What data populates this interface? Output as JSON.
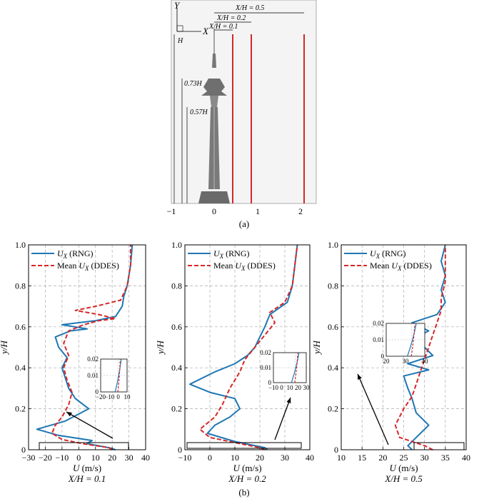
{
  "panel_a": {
    "caption": "(a)",
    "axis_y": "Y",
    "axis_x": "X",
    "height_label": "H",
    "ratio_labels": [
      "X/H = 0.5",
      "X/H = 0.2",
      "X/H = 0.1"
    ],
    "height_markers": [
      "0.73H",
      "0.57H"
    ],
    "x_ticks": [
      "−1",
      "0",
      "1",
      "2"
    ],
    "line_color": "#d62728"
  },
  "panel_b_caption": "(b)",
  "chart_data": [
    {
      "type": "line",
      "panel_label": "X/H = 0.1",
      "xlabel": "U (m/s)",
      "ylabel": "y/H",
      "xlim": [
        -30,
        40
      ],
      "ylim": [
        0,
        1
      ],
      "x_ticks": [
        -30,
        -20,
        -10,
        0,
        10,
        20,
        30,
        40
      ],
      "x_tick_labels": [
        "−30",
        "−20",
        "−10",
        "0",
        "10",
        "20",
        "30",
        "40"
      ],
      "y_ticks": [
        0,
        0.2,
        0.4,
        0.6,
        0.8,
        1.0
      ],
      "y_tick_labels": [
        "0",
        "0.2",
        "0.4",
        "0.6",
        "0.8",
        "1.0"
      ],
      "grid": true,
      "legend_position": "top-left",
      "series": [
        {
          "name": "Ux (RNG)",
          "label_main": "U",
          "label_sub": "X",
          "label_rest": " (RNG)",
          "color": "#1f77b4",
          "dash": "solid",
          "points": [
            [
              22,
              0.0
            ],
            [
              18,
              0.01
            ],
            [
              5,
              0.03
            ],
            [
              8,
              0.045
            ],
            [
              -12,
              0.07
            ],
            [
              -25,
              0.1
            ],
            [
              -8,
              0.14
            ],
            [
              6,
              0.2
            ],
            [
              -2,
              0.25
            ],
            [
              -6,
              0.3
            ],
            [
              -8,
              0.35
            ],
            [
              -10,
              0.4
            ],
            [
              -7,
              0.45
            ],
            [
              -12,
              0.5
            ],
            [
              -14,
              0.55
            ],
            [
              -5,
              0.58
            ],
            [
              5,
              0.59
            ],
            [
              -10,
              0.61
            ],
            [
              10,
              0.63
            ],
            [
              22,
              0.65
            ],
            [
              26,
              0.7
            ],
            [
              27,
              0.75
            ],
            [
              29,
              0.8
            ],
            [
              31,
              0.9
            ],
            [
              32,
              1.0
            ]
          ]
        },
        {
          "name": "Mean Ux (DDES)",
          "label_main": "Mean U",
          "label_sub": "X",
          "label_rest": " (DDES)",
          "color": "#d62728",
          "dash": "dashed",
          "points": [
            [
              20,
              0.0
            ],
            [
              18,
              0.01
            ],
            [
              2,
              0.03
            ],
            [
              -10,
              0.05
            ],
            [
              -16,
              0.08
            ],
            [
              -14,
              0.12
            ],
            [
              -10,
              0.16
            ],
            [
              -6,
              0.22
            ],
            [
              -4,
              0.28
            ],
            [
              -7,
              0.34
            ],
            [
              -9,
              0.4
            ],
            [
              -6,
              0.46
            ],
            [
              -9,
              0.52
            ],
            [
              -6,
              0.58
            ],
            [
              3,
              0.61
            ],
            [
              12,
              0.63
            ],
            [
              22,
              0.64
            ],
            [
              12,
              0.66
            ],
            [
              -2,
              0.68
            ],
            [
              10,
              0.7
            ],
            [
              25,
              0.73
            ],
            [
              29,
              0.8
            ],
            [
              31,
              0.9
            ],
            [
              31,
              1.0
            ]
          ]
        }
      ],
      "inset": {
        "xlim": [
          -20,
          10
        ],
        "ylim": [
          0,
          0.02
        ],
        "x_tick_labels": [
          "−20",
          "−10",
          "0",
          "10"
        ],
        "y_tick_labels": [
          "0",
          "0.01",
          "0.02"
        ]
      }
    },
    {
      "type": "line",
      "panel_label": "X/H = 0.2",
      "xlabel": "U (m/s)",
      "ylabel": "y/H",
      "xlim": [
        -10,
        40
      ],
      "ylim": [
        0,
        1
      ],
      "x_ticks": [
        -10,
        0,
        10,
        20,
        30,
        40
      ],
      "x_tick_labels": [
        "−10",
        "0",
        "10",
        "20",
        "30",
        "40"
      ],
      "y_ticks": [
        0,
        0.2,
        0.4,
        0.6,
        0.8,
        1.0
      ],
      "y_tick_labels": [
        "0",
        "0.2",
        "0.4",
        "0.6",
        "0.8",
        "1.0"
      ],
      "grid": true,
      "legend_position": "top-left",
      "series": [
        {
          "name": "Ux (RNG)",
          "label_main": "U",
          "label_sub": "X",
          "label_rest": " (RNG)",
          "color": "#1f77b4",
          "dash": "solid",
          "points": [
            [
              23,
              0.0
            ],
            [
              22,
              0.01
            ],
            [
              10,
              0.04
            ],
            [
              -1,
              0.08
            ],
            [
              2,
              0.12
            ],
            [
              8,
              0.16
            ],
            [
              12,
              0.2
            ],
            [
              10,
              0.25
            ],
            [
              0,
              0.28
            ],
            [
              -8,
              0.32
            ],
            [
              2,
              0.38
            ],
            [
              10,
              0.42
            ],
            [
              15,
              0.46
            ],
            [
              18,
              0.5
            ],
            [
              20,
              0.55
            ],
            [
              22,
              0.6
            ],
            [
              24,
              0.66
            ],
            [
              31,
              0.72
            ],
            [
              33,
              0.8
            ],
            [
              34,
              0.9
            ],
            [
              35,
              1.0
            ]
          ]
        },
        {
          "name": "Mean Ux (DDES)",
          "label_main": "Mean U",
          "label_sub": "X",
          "label_rest": " (DDES)",
          "color": "#d62728",
          "dash": "dashed",
          "points": [
            [
              22,
              0.0
            ],
            [
              20,
              0.01
            ],
            [
              12,
              0.03
            ],
            [
              0,
              0.06
            ],
            [
              -4,
              0.1
            ],
            [
              2,
              0.16
            ],
            [
              5,
              0.22
            ],
            [
              8,
              0.3
            ],
            [
              12,
              0.38
            ],
            [
              14,
              0.44
            ],
            [
              18,
              0.5
            ],
            [
              22,
              0.56
            ],
            [
              26,
              0.62
            ],
            [
              24,
              0.67
            ],
            [
              30,
              0.72
            ],
            [
              33,
              0.8
            ],
            [
              34,
              0.9
            ],
            [
              35,
              1.0
            ]
          ]
        }
      ],
      "inset": {
        "xlim": [
          -10,
          30
        ],
        "ylim": [
          0,
          0.02
        ],
        "x_tick_labels": [
          "−10",
          "0",
          "10",
          "20",
          "30"
        ],
        "y_tick_labels": [
          "0",
          "0.01",
          "0.02"
        ]
      }
    },
    {
      "type": "line",
      "panel_label": "X/H = 0.5",
      "xlabel": "U (m/s)",
      "ylabel": "y/H",
      "xlim": [
        10,
        40
      ],
      "ylim": [
        0,
        1
      ],
      "x_ticks": [
        10,
        15,
        20,
        25,
        30,
        35,
        40
      ],
      "x_tick_labels": [
        "10",
        "15",
        "20",
        "25",
        "30",
        "35",
        "40"
      ],
      "y_ticks": [
        0,
        0.2,
        0.4,
        0.6,
        0.8,
        1.0
      ],
      "y_tick_labels": [
        "0",
        "0.2",
        "0.4",
        "0.6",
        "0.8",
        "1.0"
      ],
      "grid": true,
      "legend_position": "top-left",
      "series": [
        {
          "name": "Ux (RNG)",
          "label_main": "U",
          "label_sub": "X",
          "label_rest": " (RNG)",
          "color": "#1f77b4",
          "dash": "solid",
          "points": [
            [
              27,
              0.0
            ],
            [
              26,
              0.02
            ],
            [
              28,
              0.06
            ],
            [
              31,
              0.12
            ],
            [
              28,
              0.18
            ],
            [
              27,
              0.25
            ],
            [
              26,
              0.3
            ],
            [
              25,
              0.36
            ],
            [
              31,
              0.39
            ],
            [
              26,
              0.42
            ],
            [
              32,
              0.46
            ],
            [
              30,
              0.5
            ],
            [
              27,
              0.54
            ],
            [
              31,
              0.58
            ],
            [
              27,
              0.62
            ],
            [
              33,
              0.66
            ],
            [
              35,
              0.72
            ],
            [
              34,
              0.78
            ],
            [
              35,
              0.85
            ],
            [
              34,
              0.92
            ],
            [
              35,
              1.0
            ]
          ]
        },
        {
          "name": "Mean Ux (DDES)",
          "label_main": "Mean U",
          "label_sub": "X",
          "label_rest": " (DDES)",
          "color": "#d62728",
          "dash": "dashed",
          "points": [
            [
              32,
              0.0
            ],
            [
              30,
              0.02
            ],
            [
              24,
              0.06
            ],
            [
              23,
              0.12
            ],
            [
              25,
              0.2
            ],
            [
              27,
              0.26
            ],
            [
              28,
              0.32
            ],
            [
              29,
              0.38
            ],
            [
              30,
              0.44
            ],
            [
              31,
              0.5
            ],
            [
              32,
              0.56
            ],
            [
              33,
              0.62
            ],
            [
              34,
              0.68
            ],
            [
              34,
              0.74
            ],
            [
              35,
              0.82
            ],
            [
              35,
              0.9
            ],
            [
              35,
              1.0
            ]
          ]
        }
      ],
      "inset": {
        "xlim": [
          20,
          40
        ],
        "ylim": [
          0,
          0.02
        ],
        "x_tick_labels": [
          "20",
          "30",
          "40"
        ],
        "y_tick_labels": [
          "0",
          "0.01",
          "0.02"
        ]
      }
    }
  ]
}
